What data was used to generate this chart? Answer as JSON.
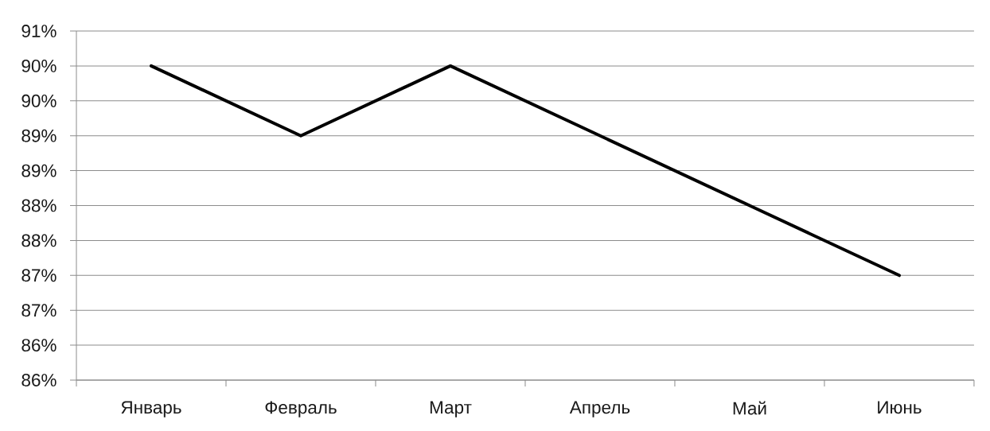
{
  "chart_data": {
    "type": "line",
    "categories": [
      "Январь",
      "Февраль",
      "Март",
      "Апрель",
      "Май",
      "Июнь"
    ],
    "series": [
      {
        "color": "#000000",
        "values": [
          90,
          89,
          90,
          89,
          88,
          87
        ]
      }
    ],
    "ylim": [
      85.5,
      90.5
    ],
    "yticks": [
      {
        "value": 85.5,
        "label": "86%"
      },
      {
        "value": 86,
        "label": "86%"
      },
      {
        "value": 86.5,
        "label": "87%"
      },
      {
        "value": 87,
        "label": "87%"
      },
      {
        "value": 87.5,
        "label": "88%"
      },
      {
        "value": 88,
        "label": "88%"
      },
      {
        "value": 88.5,
        "label": "89%"
      },
      {
        "value": 89,
        "label": "89%"
      },
      {
        "value": 89.5,
        "label": "90%"
      },
      {
        "value": 90,
        "label": "90%"
      },
      {
        "value": 90.5,
        "label": "91%"
      }
    ],
    "grid": "y",
    "line_style": "solid"
  }
}
